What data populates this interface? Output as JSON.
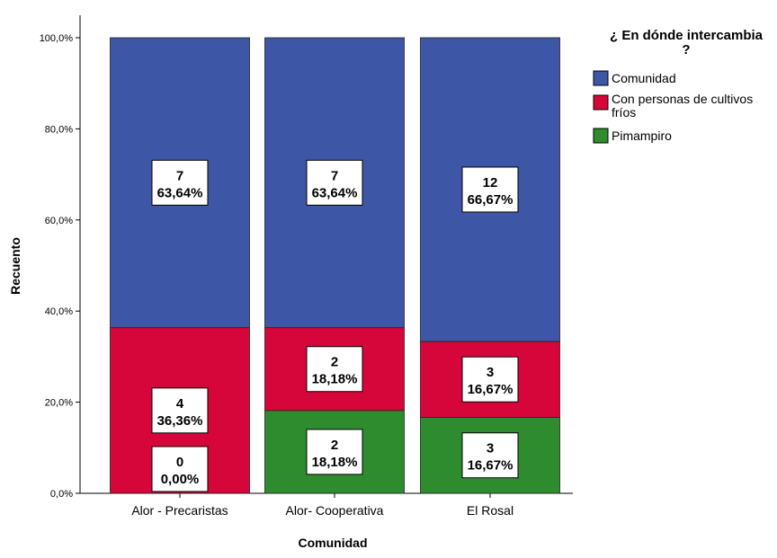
{
  "chart_data": {
    "type": "bar",
    "stacked": true,
    "percent_stacked": true,
    "xlabel": "Comunidad",
    "ylabel": "Recuento",
    "ylim": [
      0,
      100
    ],
    "yticks": [
      "0,0%",
      "20,0%",
      "40,0%",
      "60,0%",
      "80,0%",
      "100,0%"
    ],
    "categories": [
      "Alor - Precaristas",
      "Alor- Cooperativa",
      "El Rosal"
    ],
    "legend": {
      "title": "¿ En dónde intercambia ?",
      "position": "right"
    },
    "series": [
      {
        "name": "Pimampiro",
        "color": "#2e8b2e",
        "counts": [
          0,
          2,
          3
        ],
        "values": [
          0.0,
          18.18,
          16.67
        ],
        "labels": [
          "0,00%",
          "18,18%",
          "16,67%"
        ]
      },
      {
        "name": "Con personas de cultivos fríos",
        "color": "#d7063a",
        "counts": [
          4,
          2,
          3
        ],
        "values": [
          36.36,
          18.18,
          16.67
        ],
        "labels": [
          "36,36%",
          "18,18%",
          "16,67%"
        ]
      },
      {
        "name": "Comunidad",
        "color": "#3d57a6",
        "counts": [
          7,
          7,
          12
        ],
        "values": [
          63.64,
          63.64,
          66.67
        ],
        "labels": [
          "63,64%",
          "63,64%",
          "66,67%"
        ]
      }
    ],
    "legend_order": [
      "Comunidad",
      "Con personas de cultivos fríos",
      "Pimampiro"
    ]
  }
}
